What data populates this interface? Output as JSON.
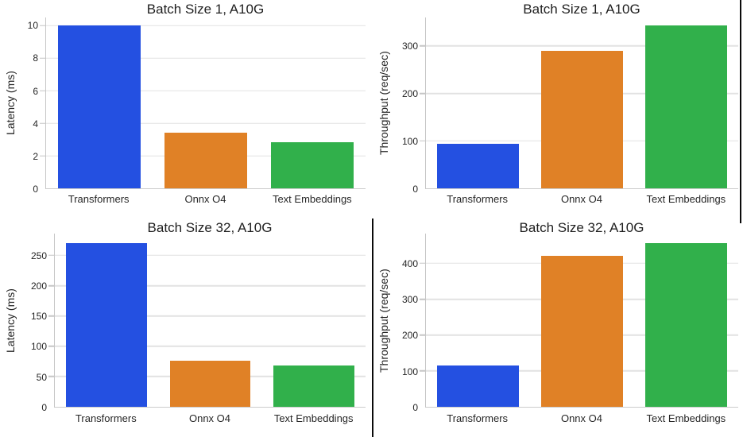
{
  "page": {
    "background": "#ffffff"
  },
  "palette": {
    "bar_colors": [
      "#2450e1",
      "#e08126",
      "#31b04b"
    ],
    "grid_color": "#e2e2e2",
    "spine_color": "#c6c6c6",
    "text_color": "#262626"
  },
  "chart_data": [
    {
      "type": "bar",
      "title": "Batch Size 1, A10G",
      "xlabel": "",
      "ylabel": "Latency (ms)",
      "categories": [
        "Transformers",
        "Onnx O4",
        "Text Embeddings"
      ],
      "values": [
        10.0,
        3.4,
        2.85
      ],
      "yticks": [
        0,
        2,
        4,
        6,
        8,
        10
      ],
      "ylim": [
        0,
        10.5
      ],
      "grid": "horizontal",
      "legend": "none"
    },
    {
      "type": "bar",
      "title": "Batch Size 1, A10G",
      "xlabel": "",
      "ylabel": "Throughput (req/sec)",
      "categories": [
        "Transformers",
        "Onnx O4",
        "Text Embeddings"
      ],
      "values": [
        93,
        290,
        343
      ],
      "yticks": [
        0,
        100,
        200,
        300
      ],
      "ylim": [
        0,
        360
      ],
      "grid": "horizontal",
      "legend": "none"
    },
    {
      "type": "bar",
      "title": "Batch Size 32, A10G",
      "xlabel": "",
      "ylabel": "Latency (ms)",
      "categories": [
        "Transformers",
        "Onnx O4",
        "Text Embeddings"
      ],
      "values": [
        270,
        76,
        68
      ],
      "yticks": [
        0,
        50,
        100,
        150,
        200,
        250
      ],
      "ylim": [
        0,
        286
      ],
      "grid": "horizontal",
      "legend": "none"
    },
    {
      "type": "bar",
      "title": "Batch Size 32, A10G",
      "xlabel": "",
      "ylabel": "Throughput (req/sec)",
      "categories": [
        "Transformers",
        "Onnx O4",
        "Text Embeddings"
      ],
      "values": [
        116,
        420,
        457
      ],
      "yticks": [
        0,
        100,
        200,
        300,
        400
      ],
      "ylim": [
        0,
        483
      ],
      "grid": "horizontal",
      "legend": "none"
    }
  ]
}
